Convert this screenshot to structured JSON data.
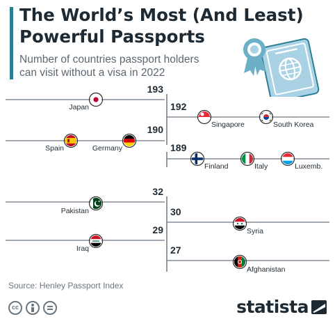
{
  "header": {
    "title_line1": "The World’s Most (And Least)",
    "title_line2": "Powerful Passports",
    "subtitle_line1": "Number of countries passport holders",
    "subtitle_line2": "can visit without a visa in 2022"
  },
  "chart_data": {
    "type": "line",
    "title": "The World’s Most (And Least) Powerful Passports",
    "subtitle": "Number of countries passport holders can visit without a visa in 2022",
    "groups": [
      {
        "value": 193,
        "side": "left",
        "countries": [
          {
            "name": "Japan",
            "flag": "japan-flag-icon"
          }
        ]
      },
      {
        "value": 192,
        "side": "right",
        "countries": [
          {
            "name": "Singapore",
            "flag": "singapore-flag-icon"
          },
          {
            "name": "South Korea",
            "flag": "south-korea-flag-icon"
          }
        ]
      },
      {
        "value": 190,
        "side": "left",
        "countries": [
          {
            "name": "Spain",
            "flag": "spain-flag-icon"
          },
          {
            "name": "Germany",
            "flag": "germany-flag-icon"
          }
        ]
      },
      {
        "value": 189,
        "side": "right",
        "countries": [
          {
            "name": "Finland",
            "flag": "finland-flag-icon"
          },
          {
            "name": "Italy",
            "flag": "italy-flag-icon"
          },
          {
            "name": "Luxemb.",
            "flag": "luxembourg-flag-icon"
          }
        ]
      },
      {
        "value": 32,
        "side": "left",
        "countries": [
          {
            "name": "Pakistan",
            "flag": "pakistan-flag-icon"
          }
        ]
      },
      {
        "value": 30,
        "side": "right",
        "countries": [
          {
            "name": "Syria",
            "flag": "syria-flag-icon"
          }
        ]
      },
      {
        "value": 29,
        "side": "left",
        "countries": [
          {
            "name": "Iraq",
            "flag": "iraq-flag-icon"
          }
        ]
      },
      {
        "value": 27,
        "side": "right",
        "countries": [
          {
            "name": "Afghanistan",
            "flag": "afghanistan-flag-icon"
          }
        ]
      }
    ]
  },
  "footer": {
    "source": "Source: Henley Passport Index",
    "brand": "statista"
  },
  "colors": {
    "accent": "#2b7f94",
    "text": "#1e2a33",
    "line": "#6b7680",
    "passport": "#a9d3e4",
    "ribbon": "#6cb0c8"
  }
}
